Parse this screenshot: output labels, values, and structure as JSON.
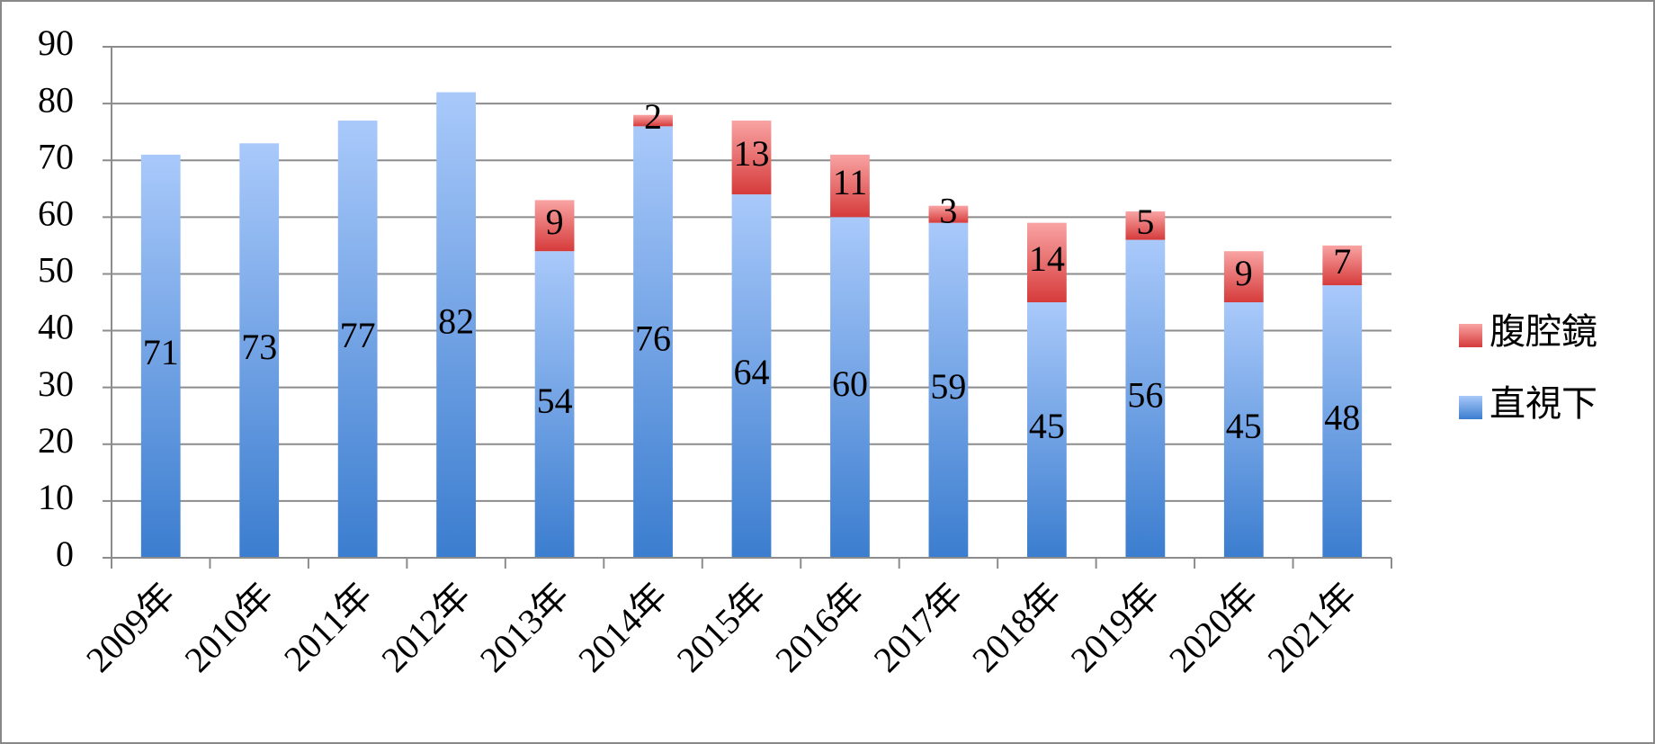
{
  "chart_data": {
    "type": "stacked_bar",
    "categories": [
      "2009年",
      "2010年",
      "2011年",
      "2012年",
      "2013年",
      "2014年",
      "2015年",
      "2016年",
      "2017年",
      "2018年",
      "2019年",
      "2020年",
      "2021年"
    ],
    "series": [
      {
        "name": "直視下",
        "color": "#4a86d6",
        "gradient": [
          "#a9c9fa",
          "#3b7dcf"
        ],
        "values": [
          71,
          73,
          77,
          82,
          54,
          76,
          64,
          60,
          59,
          45,
          56,
          45,
          48
        ]
      },
      {
        "name": "腹腔鏡",
        "color": "#e05252",
        "gradient": [
          "#f9a3a3",
          "#d63b3b"
        ],
        "values": [
          null,
          null,
          null,
          null,
          9,
          2,
          13,
          11,
          3,
          14,
          5,
          9,
          7
        ]
      }
    ],
    "ylim": [
      0,
      90
    ],
    "yticks": [
      0,
      10,
      20,
      30,
      40,
      50,
      60,
      70,
      80,
      90
    ],
    "grid": true,
    "legend": "right"
  }
}
